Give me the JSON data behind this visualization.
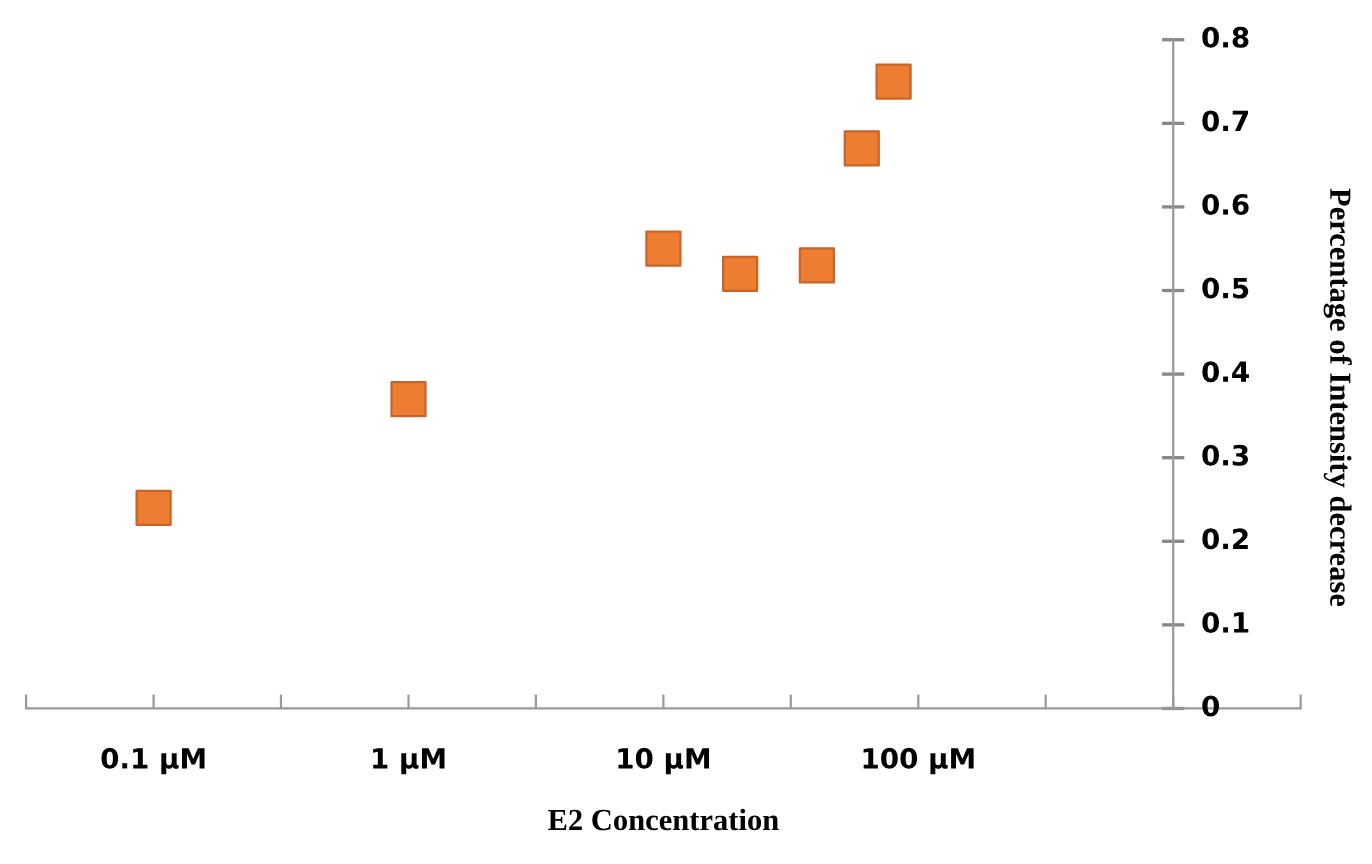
{
  "chart_data": {
    "type": "scatter",
    "xlabel": "E2 Concentration",
    "ylabel": "Percentage of Intensity decrease",
    "log": "x",
    "marker": "square",
    "grid": false,
    "xlim": [
      0.0316,
      3162
    ],
    "xticks": [
      {
        "value": 0.0316,
        "label": null
      },
      {
        "value": 0.1,
        "label": "0.1 µM"
      },
      {
        "value": 0.316,
        "label": null
      },
      {
        "value": 1,
        "label": "1 µM"
      },
      {
        "value": 3.16,
        "label": null
      },
      {
        "value": 10,
        "label": "10 µM"
      },
      {
        "value": 31.6,
        "label": null
      },
      {
        "value": 100,
        "label": "100 µM"
      },
      {
        "value": 316,
        "label": null
      },
      {
        "value": 1000,
        "label": null
      },
      {
        "value": 3162,
        "label": null
      }
    ],
    "ylim": [
      0,
      0.8
    ],
    "yticks": [
      0,
      0.1,
      0.2,
      0.3,
      0.4,
      0.5,
      0.6,
      0.7,
      0.8
    ],
    "series": [
      {
        "color": "#ed7d31",
        "x": [
          0.1,
          1,
          10,
          20,
          40,
          60,
          80
        ],
        "values": [
          0.24,
          0.37,
          0.55,
          0.52,
          0.53,
          0.67,
          0.75
        ]
      }
    ]
  }
}
